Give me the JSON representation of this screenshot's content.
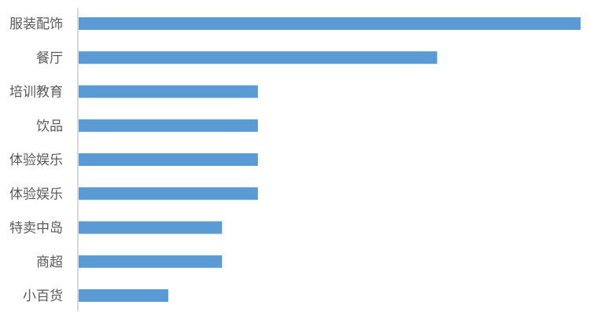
{
  "chart_data": {
    "type": "bar",
    "orientation": "horizontal",
    "categories": [
      "服装配饰",
      "餐厅",
      "培训教育",
      "饮品",
      "体验娱乐",
      "体验娱乐",
      "特卖中岛",
      "商超",
      "小百货"
    ],
    "values": [
      28,
      20,
      10,
      10,
      10,
      10,
      8,
      8,
      5
    ],
    "xlim": [
      0,
      28
    ],
    "grid": false,
    "axis_values_shown": false,
    "title": "",
    "xlabel": "",
    "ylabel": "",
    "colors": {
      "bar": "#5b9bd5",
      "axis": "#d9d9d9",
      "label": "#595959"
    }
  }
}
